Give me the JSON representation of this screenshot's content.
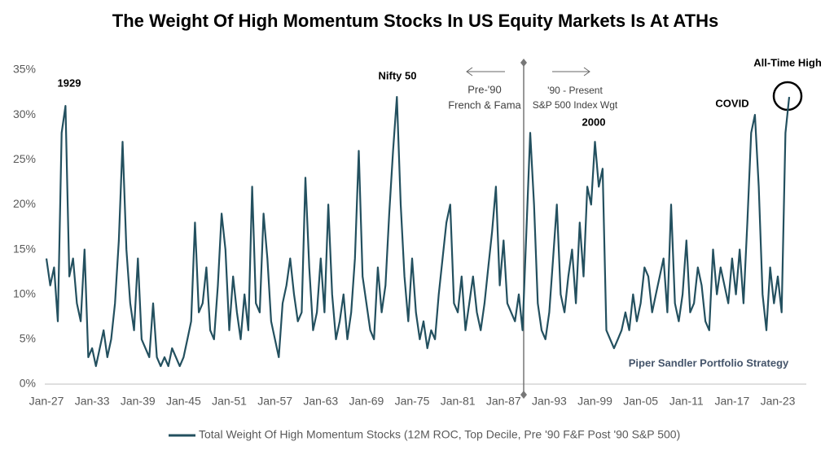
{
  "chart_data": {
    "type": "line",
    "title": "The Weight Of High Momentum Stocks In US Equity Markets Is At ATHs",
    "categories": [
      "Jan-27",
      null,
      null,
      null,
      null,
      null,
      null,
      null,
      null,
      null,
      null,
      null,
      "Jan-33",
      null,
      null,
      null,
      null,
      null,
      null,
      null,
      null,
      null,
      null,
      null,
      "Jan-39",
      null,
      null,
      null,
      null,
      null,
      null,
      null,
      null,
      null,
      null,
      null,
      "Jan-45",
      null,
      null,
      null,
      null,
      null,
      null,
      null,
      null,
      null,
      null,
      null,
      "Jan-51",
      null,
      null,
      null,
      null,
      null,
      null,
      null,
      null,
      null,
      null,
      null,
      "Jan-57",
      null,
      null,
      null,
      null,
      null,
      null,
      null,
      null,
      null,
      null,
      null,
      "Jan-63",
      null,
      null,
      null,
      null,
      null,
      null,
      null,
      null,
      null,
      null,
      null,
      "Jan-69",
      null,
      null,
      null,
      null,
      null,
      null,
      null,
      null,
      null,
      null,
      null,
      "Jan-75",
      null,
      null,
      null,
      null,
      null,
      null,
      null,
      null,
      null,
      null,
      null,
      "Jan-81",
      null,
      null,
      null,
      null,
      null,
      null,
      null,
      null,
      null,
      null,
      null,
      "Jan-87",
      null,
      null,
      null,
      null,
      null,
      null,
      null,
      null,
      null,
      null,
      null,
      "Jan-93",
      null,
      null,
      null,
      null,
      null,
      null,
      null,
      null,
      null,
      null,
      null,
      "Jan-99",
      null,
      null,
      null,
      null,
      null,
      null,
      null,
      null,
      null,
      null,
      null,
      "Jan-05",
      null,
      null,
      null,
      null,
      null,
      null,
      null,
      null,
      null,
      null,
      null,
      "Jan-11",
      null,
      null,
      null,
      null,
      null,
      null,
      null,
      null,
      null,
      null,
      null,
      "Jan-17",
      null,
      null,
      null,
      null,
      null,
      null,
      null,
      null,
      null,
      null,
      null,
      "Jan-23",
      null,
      null,
      null
    ],
    "series": [
      {
        "name": "Total Weight Of High Momentum Stocks (12M ROC, Top Decile, Pre '90 F&F Post '90 S&P 500)",
        "color": "#23505f",
        "values": [
          14,
          11,
          13,
          7,
          28,
          31,
          12,
          14,
          9,
          7,
          15,
          3,
          4,
          2,
          4,
          6,
          3,
          5,
          9,
          16,
          27,
          15,
          9,
          6,
          14,
          5,
          4,
          3,
          9,
          3,
          2,
          3,
          2,
          4,
          3,
          2,
          3,
          5,
          7,
          18,
          8,
          9,
          13,
          6,
          5,
          11,
          19,
          15,
          6,
          12,
          8,
          5,
          10,
          6,
          22,
          9,
          8,
          19,
          14,
          7,
          5,
          3,
          9,
          11,
          14,
          10,
          7,
          8,
          23,
          13,
          6,
          8,
          14,
          8,
          20,
          10,
          5,
          7,
          10,
          5,
          8,
          14,
          26,
          12,
          9,
          6,
          5,
          13,
          8,
          11,
          19,
          26,
          32,
          20,
          12,
          7,
          14,
          8,
          5,
          7,
          4,
          6,
          5,
          10,
          14,
          18,
          20,
          9,
          8,
          12,
          6,
          9,
          12,
          8,
          6,
          9,
          13,
          17,
          22,
          11,
          16,
          9,
          8,
          7,
          10,
          6,
          17,
          28,
          20,
          9,
          6,
          5,
          8,
          14,
          20,
          10,
          8,
          12,
          15,
          9,
          18,
          12,
          22,
          20,
          27,
          22,
          24,
          6,
          5,
          4,
          5,
          6,
          8,
          6,
          10,
          7,
          9,
          13,
          12,
          8,
          10,
          12,
          14,
          8,
          20,
          9,
          7,
          10,
          16,
          8,
          9,
          13,
          11,
          7,
          6,
          15,
          10,
          13,
          11,
          9,
          14,
          10,
          15,
          9,
          18,
          28,
          30,
          22,
          10,
          6,
          13,
          9,
          12,
          8,
          28,
          32
        ]
      }
    ],
    "ylim": [
      0,
      35
    ],
    "yticks": [
      {
        "value": 0,
        "label": "0%"
      },
      {
        "value": 5,
        "label": "5%"
      },
      {
        "value": 10,
        "label": "10%"
      },
      {
        "value": 15,
        "label": "15%"
      },
      {
        "value": 20,
        "label": "20%"
      },
      {
        "value": 25,
        "label": "25%"
      },
      {
        "value": 30,
        "label": "30%"
      },
      {
        "value": 35,
        "label": "35%"
      }
    ],
    "annotations": [
      "1929",
      "Nifty 50",
      "Pre-'90",
      "French & Fama",
      "'90 - Present",
      "S&P 500 Index Wgt",
      "2000",
      "COVID",
      "All-Time High",
      "Piper Sandler Portfolio Strategy"
    ]
  }
}
